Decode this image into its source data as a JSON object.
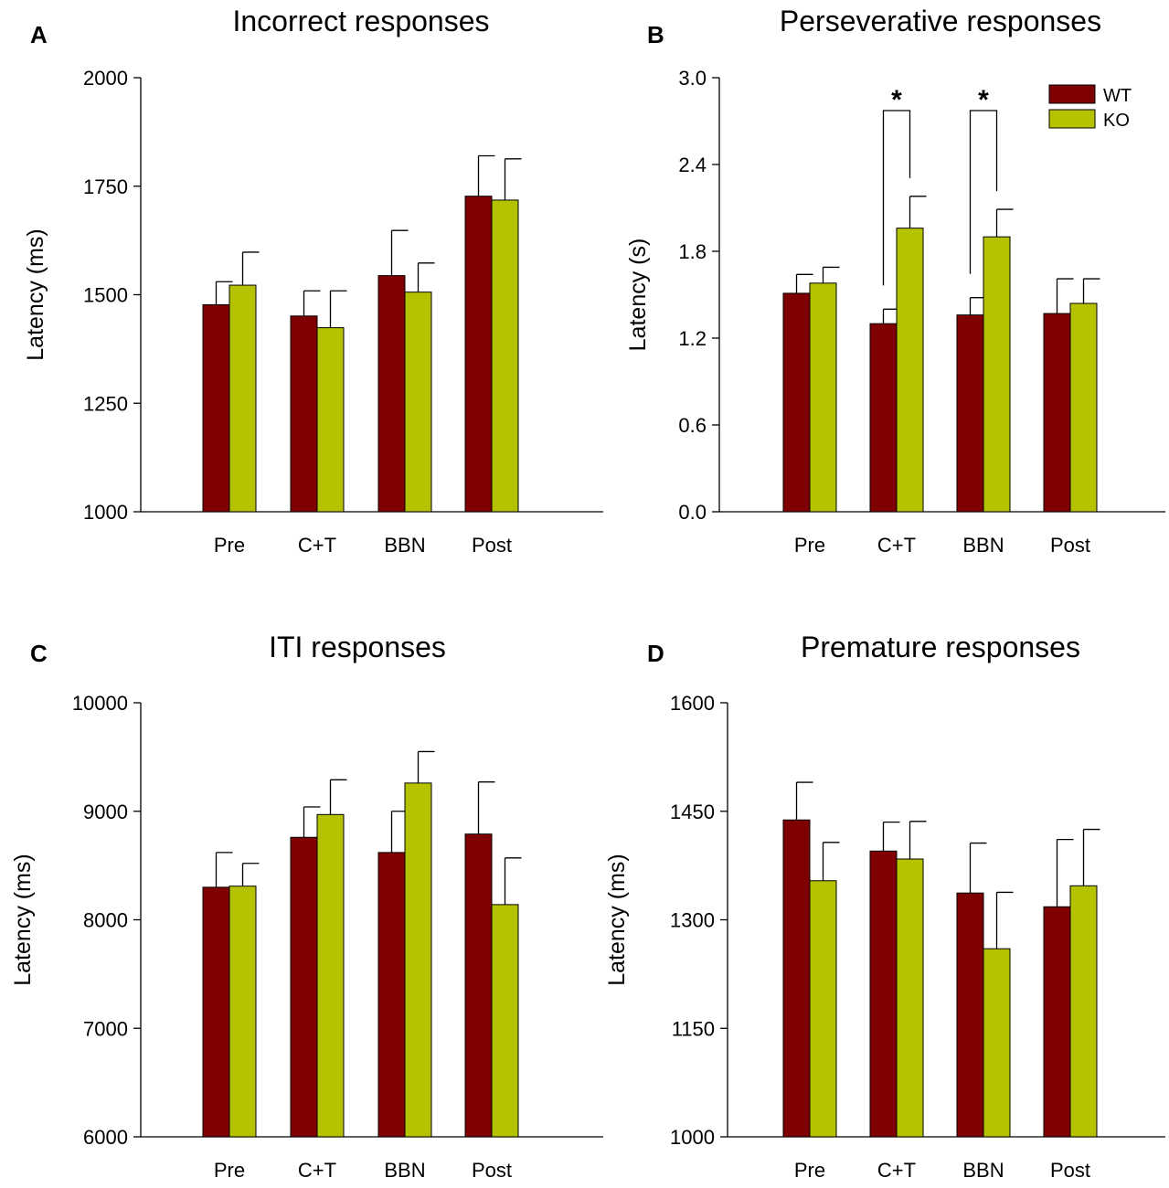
{
  "figure": {
    "colors": {
      "WT": "#7f0000",
      "KO": "#b5c200",
      "axis": "#000000"
    },
    "legend": [
      "WT",
      "KO"
    ]
  },
  "chart_data": [
    {
      "panel": "A",
      "type": "bar",
      "title": "Incorrect responses",
      "xlabel": "",
      "ylabel": "Latency (ms)",
      "ylim": [
        1000,
        2000
      ],
      "yticks": [
        "1000",
        "1250",
        "1500",
        "1750",
        "2000"
      ],
      "categories": [
        "Pre",
        "C+T",
        "BBN",
        "Post"
      ],
      "series": [
        {
          "name": "WT",
          "values": [
            1477,
            1451,
            1544,
            1727
          ],
          "errors": [
            53,
            58,
            104,
            93
          ]
        },
        {
          "name": "KO",
          "values": [
            1522,
            1424,
            1506,
            1718
          ],
          "errors": [
            76,
            85,
            67,
            95
          ]
        }
      ],
      "significance": []
    },
    {
      "panel": "B",
      "type": "bar",
      "title": "Perseverative responses",
      "xlabel": "",
      "ylabel": "Latency (s)",
      "ylim": [
        0.0,
        3.0
      ],
      "yticks": [
        "0.0",
        "0.6",
        "1.2",
        "1.8",
        "2.4",
        "3.0"
      ],
      "categories": [
        "Pre",
        "C+T",
        "BBN",
        "Post"
      ],
      "series": [
        {
          "name": "WT",
          "values": [
            1.51,
            1.3,
            1.36,
            1.37
          ],
          "errors": [
            0.13,
            0.1,
            0.12,
            0.24
          ]
        },
        {
          "name": "KO",
          "values": [
            1.58,
            1.96,
            1.9,
            1.44
          ],
          "errors": [
            0.11,
            0.22,
            0.19,
            0.17
          ]
        }
      ],
      "significance": [
        {
          "category": "C+T",
          "label": "*"
        },
        {
          "category": "BBN",
          "label": "*"
        }
      ],
      "legend": [
        "WT",
        "KO"
      ]
    },
    {
      "panel": "C",
      "type": "bar",
      "title": "ITI responses",
      "xlabel": "",
      "ylabel": "Latency (ms)",
      "ylim": [
        6000,
        10000
      ],
      "yticks": [
        "6000",
        "7000",
        "8000",
        "9000",
        "10000"
      ],
      "categories": [
        "Pre",
        "C+T",
        "BBN",
        "Post"
      ],
      "series": [
        {
          "name": "WT",
          "values": [
            8300,
            8760,
            8620,
            8790
          ],
          "errors": [
            320,
            280,
            380,
            480
          ]
        },
        {
          "name": "KO",
          "values": [
            8310,
            8970,
            9260,
            8140
          ],
          "errors": [
            210,
            320,
            290,
            430
          ]
        }
      ],
      "significance": []
    },
    {
      "panel": "D",
      "type": "bar",
      "title": "Premature responses",
      "xlabel": "",
      "ylabel": "Latency (ms)",
      "ylim": [
        1000,
        1600
      ],
      "yticks": [
        "1000",
        "1150",
        "1300",
        "1450",
        "1600"
      ],
      "categories": [
        "Pre",
        "C+T",
        "BBN",
        "Post"
      ],
      "series": [
        {
          "name": "WT",
          "values": [
            1438,
            1395,
            1337,
            1318
          ],
          "errors": [
            52,
            40,
            69,
            93
          ]
        },
        {
          "name": "KO",
          "values": [
            1354,
            1384,
            1260,
            1347
          ],
          "errors": [
            53,
            52,
            78,
            78
          ]
        }
      ],
      "significance": []
    }
  ]
}
